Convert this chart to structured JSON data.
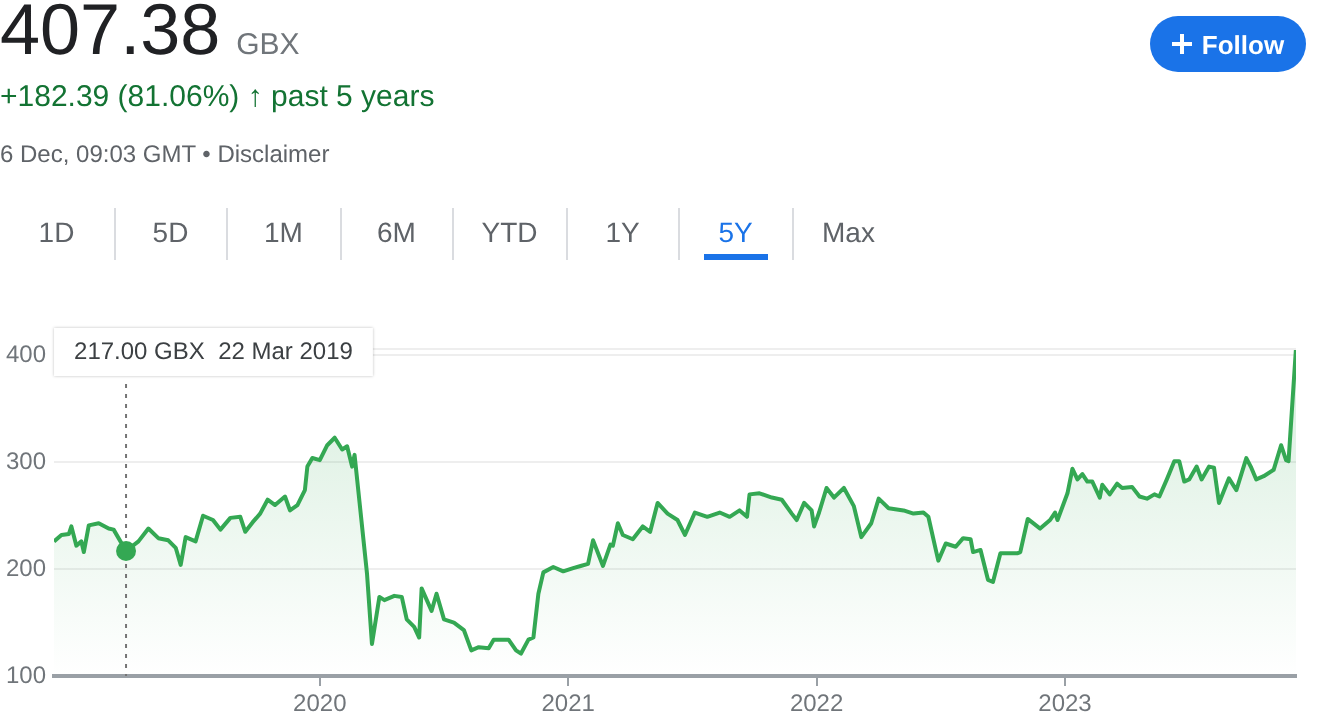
{
  "chart_data": {
    "type": "area",
    "title": "407.38 GBX",
    "subtitle": "+182.39 (81.06%) ↑ past 5 years",
    "annotations": [
      "6 Dec, 09:03 GMT • Disclaimer",
      "Follow",
      "1D",
      "5D",
      "1M",
      "6M",
      "YTD",
      "1Y",
      "5Y",
      "Max",
      "217.00 GBX  22 Mar 2019"
    ],
    "x": [
      2018.93,
      2018.96,
      2018.99,
      2019.0,
      2019.02,
      2019.04,
      2019.05,
      2019.07,
      2019.11,
      2019.15,
      2019.17,
      2019.22,
      2019.27,
      2019.31,
      2019.35,
      2019.39,
      2019.42,
      2019.44,
      2019.46,
      2019.5,
      2019.53,
      2019.57,
      2019.6,
      2019.64,
      2019.68,
      2019.7,
      2019.73,
      2019.76,
      2019.79,
      2019.82,
      2019.86,
      2019.88,
      2019.91,
      2019.94,
      2019.95,
      2019.97,
      2020.0,
      2020.03,
      2020.06,
      2020.09,
      2020.11,
      2020.13,
      2020.14,
      2020.19,
      2020.21,
      2020.24,
      2020.26,
      2020.3,
      2020.33,
      2020.35,
      2020.38,
      2020.4,
      2020.41,
      2020.45,
      2020.47,
      2020.5,
      2020.54,
      2020.58,
      2020.61,
      2020.64,
      2020.68,
      2020.7,
      2020.76,
      2020.79,
      2020.81,
      2020.84,
      2020.86,
      2020.88,
      2020.9,
      2020.94,
      2020.98,
      2021.02,
      2021.05,
      2021.08,
      2021.1,
      2021.14,
      2021.17,
      2021.18,
      2021.2,
      2021.22,
      2021.26,
      2021.3,
      2021.33,
      2021.36,
      2021.4,
      2021.44,
      2021.47,
      2021.51,
      2021.56,
      2021.61,
      2021.65,
      2021.69,
      2021.72,
      2021.73,
      2021.77,
      2021.82,
      2021.86,
      2021.9,
      2021.92,
      2021.95,
      2021.98,
      2021.99,
      2022.01,
      2022.04,
      2022.07,
      2022.11,
      2022.15,
      2022.18,
      2022.22,
      2022.25,
      2022.29,
      2022.35,
      2022.39,
      2022.43,
      2022.45,
      2022.48,
      2022.49,
      2022.52,
      2022.56,
      2022.59,
      2022.62,
      2022.63,
      2022.66,
      2022.69,
      2022.71,
      2022.74,
      2022.81,
      2022.82,
      2022.85,
      2022.9,
      2022.94,
      2022.96,
      2022.97,
      2023.01,
      2023.03,
      2023.05,
      2023.07,
      2023.09,
      2023.11,
      2023.14,
      2023.15,
      2023.18,
      2023.21,
      2023.23,
      2023.27,
      2023.3,
      2023.33,
      2023.36,
      2023.38,
      2023.41,
      2023.44,
      2023.46,
      2023.48,
      2023.5,
      2023.53,
      2023.55,
      2023.58,
      2023.6,
      2023.62,
      2023.66,
      2023.69,
      2023.73,
      2023.75,
      2023.77,
      2023.8,
      2023.84,
      2023.87,
      2023.89,
      2023.9,
      2023.93
    ],
    "series": [
      {
        "color": "#34a853",
        "values": [
          226,
          232,
          233,
          240,
          222,
          226,
          216,
          241,
          243,
          238,
          237,
          217,
          226,
          238,
          229,
          227,
          220,
          204,
          230,
          226,
          250,
          246,
          237,
          248,
          249,
          235,
          244,
          252,
          265,
          260,
          268,
          255,
          260,
          274,
          296,
          304,
          302,
          316,
          323,
          312,
          315,
          296,
          307,
          196,
          130,
          174,
          171,
          175,
          174,
          153,
          146,
          136,
          182,
          161,
          177,
          153,
          150,
          143,
          124,
          127,
          126,
          134,
          134,
          124,
          121,
          134,
          136,
          177,
          197,
          202,
          198,
          201,
          203,
          205,
          227,
          203,
          223,
          222,
          243,
          232,
          228,
          240,
          235,
          262,
          252,
          246,
          232,
          253,
          249,
          253,
          249,
          255,
          249,
          270,
          271,
          267,
          265,
          252,
          246,
          262,
          255,
          240,
          253,
          276,
          267,
          276,
          259,
          230,
          243,
          266,
          257,
          255,
          252,
          253,
          249,
          218,
          208,
          224,
          221,
          229,
          228,
          216,
          218,
          190,
          188,
          215,
          215,
          216,
          247,
          238,
          246,
          253,
          246,
          271,
          294,
          284,
          289,
          282,
          282,
          267,
          279,
          270,
          280,
          276,
          277,
          268,
          266,
          270,
          268,
          284,
          301,
          301,
          282,
          284,
          296,
          284,
          296,
          295,
          262,
          285,
          274,
          304,
          295,
          284,
          287,
          293,
          316,
          302,
          301,
          407
        ]
      }
    ],
    "xlim": [
      2018.93,
      2023.93
    ],
    "xticks": [
      2020,
      2021,
      2022,
      2023
    ],
    "ylim": [
      100,
      407
    ],
    "yticks": [
      100,
      200,
      300,
      400
    ],
    "ref_lines": [
      {
        "axis": "x",
        "value": 2019.22,
        "color": "#757575",
        "line_style": "dotted"
      }
    ],
    "grid": "y"
  }
}
